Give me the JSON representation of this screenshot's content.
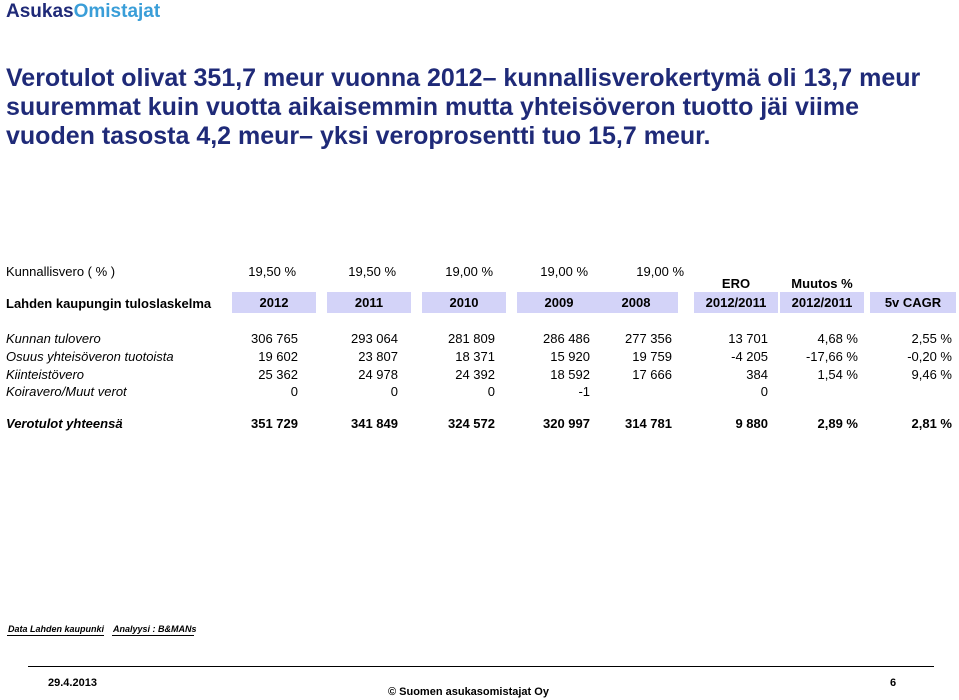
{
  "brand": {
    "part1": "Asukas",
    "part2": "Omistajat"
  },
  "headline": "Verotulot olivat 351,7 meur vuonna 2012– kunnallisverokertymä oli 13,7 meur suuremmat kuin vuotta aikaisemmin mutta yhteisöveron tuotto jäi viime vuoden tasosta 4,2 meur– yksi veroprosentti tuo 15,7 meur.",
  "rate_row": {
    "label": "Kunnallisvero ( % )",
    "values": [
      "19,50 %",
      "19,50 %",
      "19,00 %",
      "19,00 %",
      "19,00 %"
    ]
  },
  "table_header": {
    "title": "Lahden kaupungin tuloslaskelma",
    "years": [
      "2012",
      "2011",
      "2010",
      "2009",
      "2008"
    ],
    "ero_top": "ERO",
    "ero_bottom": "2012/2011",
    "muutos_top": "Muutos %",
    "muutos_bottom": "2012/2011",
    "cagr": "5v CAGR"
  },
  "rows": [
    {
      "label": "Kunnan tulovero",
      "values": [
        "306 765",
        "293 064",
        "281 809",
        "286 486",
        "277 356"
      ],
      "ero": "13 701",
      "muutos": "4,68 %",
      "cagr": "2,55 %"
    },
    {
      "label": "Osuus yhteisöveron tuotoista",
      "values": [
        "19 602",
        "23 807",
        "18 371",
        "15 920",
        "19 759"
      ],
      "ero": "-4 205",
      "muutos": "-17,66 %",
      "cagr": "-0,20 %"
    },
    {
      "label": "Kiinteistövero",
      "values": [
        "25 362",
        "24 978",
        "24 392",
        "18 592",
        "17 666"
      ],
      "ero": "384",
      "muutos": "1,54 %",
      "cagr": "9,46 %"
    },
    {
      "label": "Koiravero/Muut verot",
      "values": [
        "0",
        "0",
        "0",
        "-1",
        ""
      ],
      "ero": "0",
      "muutos": "",
      "cagr": ""
    }
  ],
  "total_row": {
    "label": "Verotulot yhteensä",
    "values": [
      "351 729",
      "341 849",
      "324 572",
      "320 997",
      "314 781"
    ],
    "ero": "9 880",
    "muutos": "2,89 %",
    "cagr": "2,81 %"
  },
  "source": {
    "data": "Data Lahden kaupunki",
    "analysis": "Analyysi : B&MANs"
  },
  "footer": {
    "date": "29.4.2013",
    "copyright": "© Suomen asukasomistajat Oy",
    "page": "6"
  }
}
